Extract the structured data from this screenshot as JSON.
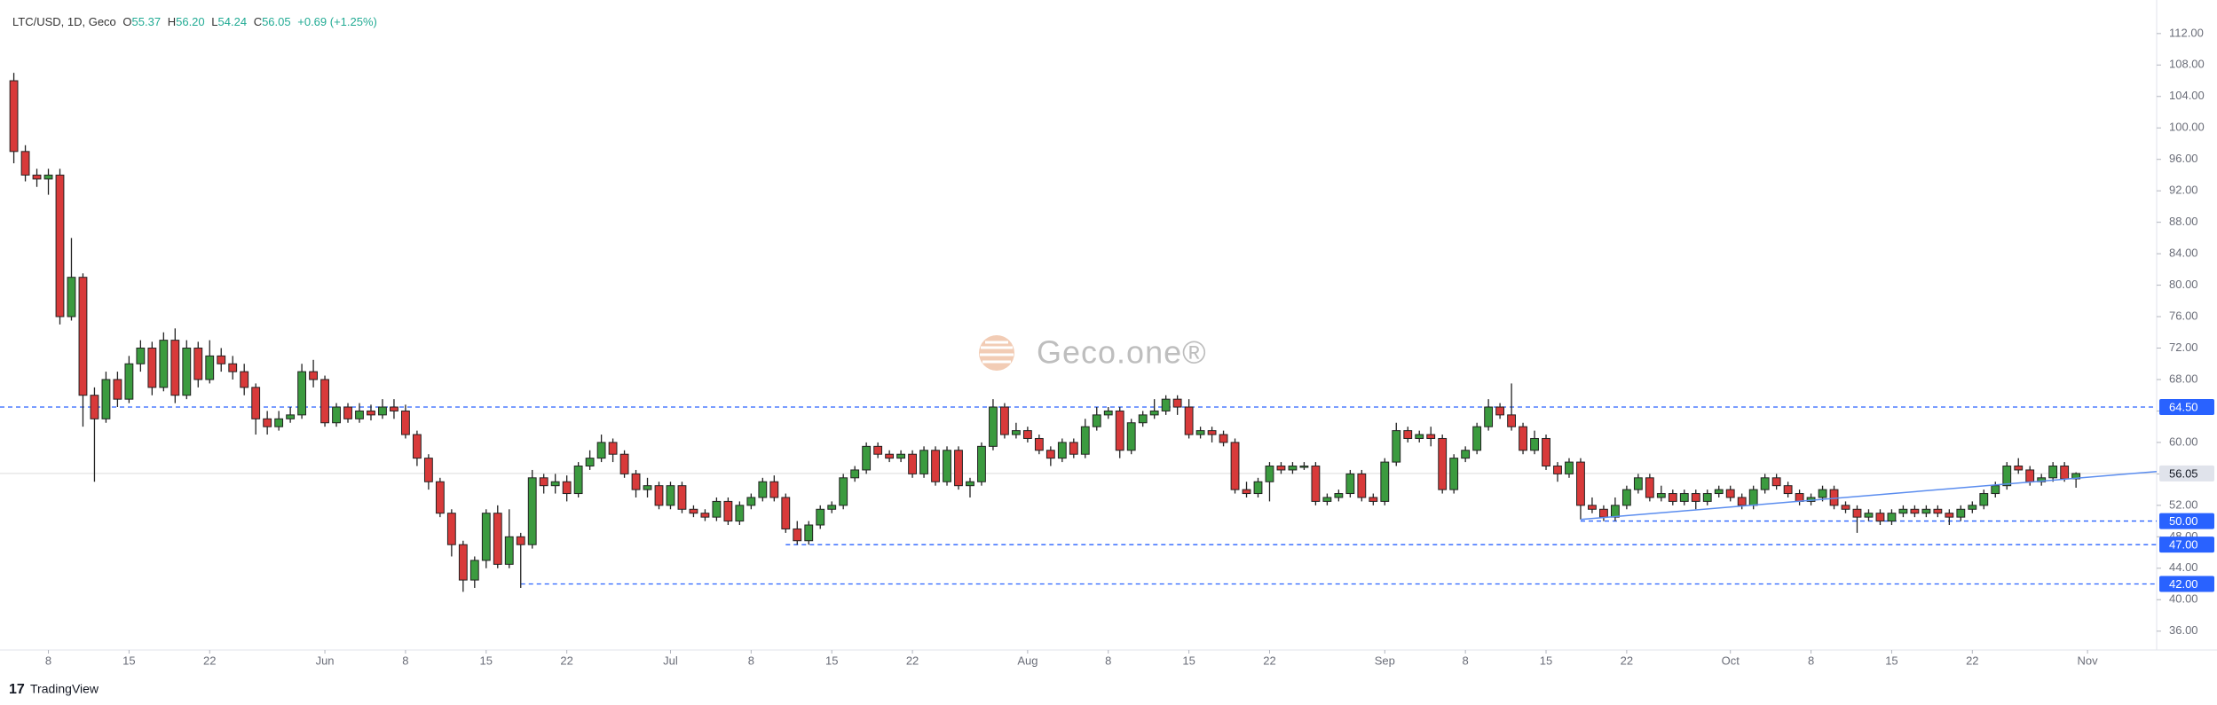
{
  "chart_data": {
    "type": "candlestick",
    "legend": {
      "symbol": "LTC/USD, 1D, Geco",
      "o_label": "O",
      "o": "55.37",
      "h_label": "H",
      "h": "56.20",
      "l_label": "L",
      "l": "54.24",
      "c_label": "C",
      "c": "56.05",
      "change": "+0.69 (+1.25%)"
    },
    "watermark": "Geco.one®",
    "footer": "TradingView",
    "up_color": "#3b9b3f",
    "down_color": "#d83a3a",
    "open": [
      106,
      97,
      94,
      93.5,
      94,
      76,
      81,
      66,
      63,
      68,
      65.5,
      70,
      72,
      67,
      73,
      66,
      72,
      68,
      71,
      70,
      69,
      67,
      63,
      62,
      63,
      63.5,
      69,
      68,
      62.5,
      64.5,
      63,
      64,
      63.5,
      64.5,
      64,
      61,
      58,
      55,
      51,
      47,
      42.5,
      45,
      51,
      44.5,
      48,
      47,
      55.5,
      54.5,
      55,
      53.5,
      57,
      58,
      60,
      58.5,
      56,
      54,
      54.5,
      52,
      54.5,
      51.5,
      51,
      50.5,
      52.5,
      50,
      52,
      53,
      55,
      53,
      49,
      47.5,
      49.5,
      51.5,
      52,
      55.5,
      56.5,
      59.5,
      58.5,
      58,
      58.5,
      56,
      59,
      55,
      59,
      54.5,
      55,
      59.5,
      64.5,
      61,
      61.5,
      60.5,
      59,
      58,
      60,
      58.5,
      62,
      63.5,
      64,
      59,
      62.5,
      63.5,
      64,
      65.5,
      64.5,
      61,
      61.5,
      61,
      60,
      54,
      53.5,
      55,
      57,
      56.5,
      57,
      57,
      52.5,
      53,
      53.5,
      56,
      53,
      52.5,
      57.5,
      61.5,
      60.5,
      61,
      60.5,
      54,
      58,
      59,
      62,
      64.5,
      63.5,
      62,
      59,
      60.5,
      57,
      56,
      57.5,
      52,
      51.5,
      50.5,
      52,
      54,
      55.5,
      53,
      53.5,
      52.5,
      53.5,
      52.5,
      53.5,
      54,
      53,
      52,
      54,
      55.5,
      54.5,
      53.5,
      52.5,
      53,
      54,
      52,
      51.5,
      50.5,
      51,
      50,
      51,
      51.5,
      51,
      51.5,
      51,
      50.5,
      51.5,
      52,
      53.5,
      54.5,
      57,
      56.5,
      55,
      55.5,
      57,
      55.37
    ],
    "high": [
      107,
      97.8,
      94.8,
      94.8,
      94.8,
      86,
      81.5,
      67,
      69,
      69,
      71,
      73,
      72.8,
      74,
      74.5,
      73,
      72.8,
      73,
      72,
      71,
      70,
      67.5,
      64,
      64,
      64.5,
      70,
      70.5,
      68.5,
      65,
      65,
      65,
      64.8,
      65.5,
      65.5,
      64.8,
      61.5,
      58.5,
      55.5,
      51.5,
      47.5,
      45.5,
      51.5,
      52,
      51.5,
      48.5,
      56.5,
      56,
      56,
      55.8,
      57.5,
      59,
      61,
      60.5,
      59,
      56.5,
      55.5,
      55,
      55,
      55,
      52,
      51.5,
      53,
      53,
      52.5,
      53.5,
      55.5,
      55.8,
      53.5,
      50,
      50,
      52,
      52.5,
      56,
      57,
      60,
      60,
      59,
      59,
      59,
      59.5,
      59.5,
      59.5,
      59.5,
      55.5,
      60,
      65.5,
      65,
      62.5,
      62,
      61,
      59.5,
      60.5,
      60.5,
      63,
      64.5,
      64.5,
      64.5,
      63,
      64,
      65.5,
      66,
      66,
      65.5,
      62,
      62,
      61.5,
      60.5,
      55,
      55.5,
      57.5,
      57.5,
      57.5,
      57.5,
      57.5,
      53.5,
      54,
      56.5,
      56.5,
      53.5,
      58,
      62.5,
      62,
      61.5,
      62,
      61,
      58.5,
      59.5,
      62.5,
      65.5,
      65,
      67.5,
      62.5,
      61.5,
      61,
      57.5,
      58,
      58,
      53,
      52,
      53,
      54.5,
      56,
      56,
      54.5,
      54,
      54,
      54,
      54,
      54.5,
      54.5,
      53.5,
      54.5,
      56,
      56,
      55,
      54,
      53.5,
      54.5,
      54.5,
      52.5,
      52,
      51.5,
      51.5,
      51.5,
      52,
      52,
      52,
      52,
      51.5,
      52,
      52.5,
      54,
      55,
      57.5,
      58,
      57,
      56,
      57.5,
      57.5,
      56.2
    ],
    "low": [
      95.5,
      93.2,
      92.5,
      91.5,
      75,
      75.5,
      62,
      55,
      62.5,
      64.5,
      65,
      69,
      66,
      66.5,
      65,
      65.5,
      67,
      67.5,
      69,
      68,
      66,
      61,
      61,
      61.5,
      62.5,
      63,
      67,
      62,
      62,
      62.5,
      62.5,
      62.8,
      63,
      63,
      60.5,
      57,
      54,
      50.5,
      45.5,
      41,
      41.5,
      44,
      44,
      44,
      41.5,
      46.5,
      53.5,
      53.5,
      52.5,
      53,
      56.5,
      57.5,
      57.5,
      55.5,
      53,
      53,
      51.5,
      51.5,
      51,
      50.5,
      50,
      50,
      49.5,
      49.5,
      51.5,
      52.5,
      52.5,
      48.5,
      47,
      47,
      49,
      51,
      51.5,
      55,
      56,
      58,
      57.5,
      57.5,
      55.5,
      55.5,
      54.5,
      54.5,
      54,
      53,
      54.5,
      59,
      60.5,
      60.5,
      60,
      58.5,
      57,
      57.5,
      58,
      58,
      61.5,
      63,
      58,
      58.5,
      62,
      63,
      63.5,
      63.5,
      60.5,
      60.5,
      60,
      59.5,
      53.5,
      53,
      53,
      52.5,
      56,
      56,
      56.5,
      52,
      52,
      52.5,
      53,
      52.5,
      52,
      52,
      57,
      60,
      60,
      59.5,
      53.5,
      53.5,
      57.5,
      58.5,
      61.5,
      63,
      61.5,
      58.5,
      58.5,
      56.5,
      55,
      55.5,
      50.2,
      51,
      50,
      50,
      51.5,
      53.5,
      52.5,
      52.5,
      52,
      52,
      51.5,
      52,
      53,
      52.5,
      51.5,
      51.5,
      53.5,
      54,
      53,
      52,
      52,
      52.5,
      51.5,
      51,
      48.5,
      50,
      49.5,
      49.5,
      50.5,
      50.5,
      50.5,
      50.5,
      49.5,
      50,
      51,
      51.5,
      53,
      54,
      56,
      54.5,
      54.5,
      55,
      55,
      54.24
    ],
    "close": [
      97,
      94,
      93.5,
      94,
      76,
      81,
      66,
      63,
      68,
      65.5,
      70,
      72,
      67,
      73,
      66,
      72,
      68,
      71,
      70,
      69,
      67,
      63,
      62,
      63,
      63.5,
      69,
      68,
      62.5,
      64.5,
      63,
      64,
      63.5,
      64.5,
      64,
      61,
      58,
      55,
      51,
      47,
      42.5,
      45,
      51,
      44.5,
      48,
      47,
      55.5,
      54.5,
      55,
      53.5,
      57,
      58,
      60,
      58.5,
      56,
      54,
      54.5,
      52,
      54.5,
      51.5,
      51,
      50.5,
      52.5,
      50,
      52,
      53,
      55,
      53,
      49,
      47.5,
      49.5,
      51.5,
      52,
      55.5,
      56.5,
      59.5,
      58.5,
      58,
      58.5,
      56,
      59,
      55,
      59,
      54.5,
      55,
      59.5,
      64.5,
      61,
      61.5,
      60.5,
      59,
      58,
      60,
      58.5,
      62,
      63.5,
      64,
      59,
      62.5,
      63.5,
      64,
      65.5,
      64.5,
      61,
      61.5,
      61,
      60,
      54,
      53.5,
      55,
      57,
      56.5,
      57,
      57,
      52.5,
      53,
      53.5,
      56,
      53,
      52.5,
      57.5,
      61.5,
      60.5,
      61,
      60.5,
      54,
      58,
      59,
      62,
      64.5,
      63.5,
      62,
      59,
      60.5,
      57,
      56,
      57.5,
      52,
      51.5,
      50.5,
      52,
      54,
      55.5,
      53,
      53.5,
      52.5,
      53.5,
      52.5,
      53.5,
      54,
      53,
      52,
      54,
      55.5,
      54.5,
      53.5,
      52.5,
      53,
      54,
      52,
      51.5,
      50.5,
      51,
      50,
      51,
      51.5,
      51,
      51.5,
      51,
      50.5,
      51.5,
      52,
      53.5,
      54.5,
      57,
      56.5,
      55,
      55.5,
      57,
      55.37,
      56.05
    ],
    "xlim": [
      -1.2,
      186
    ],
    "xticks": [
      {
        "value": 3,
        "label": "8"
      },
      {
        "value": 10,
        "label": "15"
      },
      {
        "value": 17,
        "label": "22"
      },
      {
        "value": 27,
        "label": "Jun"
      },
      {
        "value": 34,
        "label": "8"
      },
      {
        "value": 41,
        "label": "15"
      },
      {
        "value": 48,
        "label": "22"
      },
      {
        "value": 57,
        "label": "Jul"
      },
      {
        "value": 64,
        "label": "8"
      },
      {
        "value": 71,
        "label": "15"
      },
      {
        "value": 78,
        "label": "22"
      },
      {
        "value": 88,
        "label": "Aug"
      },
      {
        "value": 95,
        "label": "8"
      },
      {
        "value": 102,
        "label": "15"
      },
      {
        "value": 109,
        "label": "22"
      },
      {
        "value": 119,
        "label": "Sep"
      },
      {
        "value": 126,
        "label": "8"
      },
      {
        "value": 133,
        "label": "15"
      },
      {
        "value": 140,
        "label": "22"
      },
      {
        "value": 149,
        "label": "Oct"
      },
      {
        "value": 156,
        "label": "8"
      },
      {
        "value": 163,
        "label": "15"
      },
      {
        "value": 170,
        "label": "22"
      },
      {
        "value": 180,
        "label": "Nov"
      }
    ],
    "ylim": [
      33.6,
      114.8
    ],
    "yticks": [
      {
        "value": 36,
        "label": "36.00"
      },
      {
        "value": 40,
        "label": "40.00"
      },
      {
        "value": 44,
        "label": "44.00"
      },
      {
        "value": 48,
        "label": "48.00"
      },
      {
        "value": 52,
        "label": "52.00"
      },
      {
        "value": 56,
        "label": "56.00"
      },
      {
        "value": 60,
        "label": "60.00"
      },
      {
        "value": 64,
        "label": "64.00"
      },
      {
        "value": 68,
        "label": "68.00"
      },
      {
        "value": 72,
        "label": "72.00"
      },
      {
        "value": 76,
        "label": "76.00"
      },
      {
        "value": 80,
        "label": "80.00"
      },
      {
        "value": 84,
        "label": "84.00"
      },
      {
        "value": 88,
        "label": "88.00"
      },
      {
        "value": 92,
        "label": "92.00"
      },
      {
        "value": 96,
        "label": "96.00"
      },
      {
        "value": 100,
        "label": "100.00"
      },
      {
        "value": 104,
        "label": "104.00"
      },
      {
        "value": 108,
        "label": "108.00"
      },
      {
        "value": 112,
        "label": "112.00"
      }
    ],
    "levels": [
      {
        "value": 64.5,
        "label": "64.50",
        "from": -1.2
      },
      {
        "value": 50,
        "label": "50.00",
        "from": 136
      },
      {
        "value": 47,
        "label": "47.00",
        "from": 67
      },
      {
        "value": 42,
        "label": "42.00",
        "from": 44
      }
    ],
    "level_color": "#2962ff",
    "last_price": {
      "value": 56.05,
      "label": "56.05"
    },
    "trendline": {
      "x": [
        136,
        186
      ],
      "y": [
        50.2,
        56.3
      ],
      "color": "#5b8def"
    }
  }
}
